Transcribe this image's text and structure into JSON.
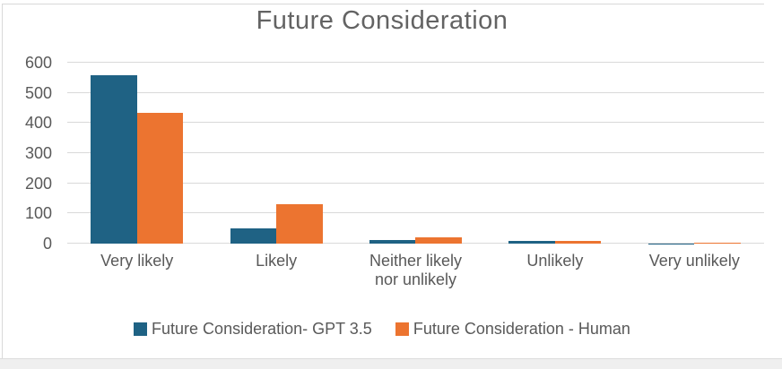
{
  "chart_data": {
    "type": "bar",
    "title": "Future Consideration",
    "categories": [
      "Very likely",
      "Likely",
      "Neither likely nor unlikely",
      "Unlikely",
      "Very unlikely"
    ],
    "series": [
      {
        "name": "Future Consideration- GPT 3.5",
        "color": "#1F6284",
        "values": [
          557,
          50,
          11,
          8,
          1
        ]
      },
      {
        "name": "Future Consideration - Human",
        "color": "#EC7430",
        "values": [
          433,
          130,
          21,
          9,
          4
        ]
      }
    ],
    "ylim": [
      0,
      600
    ],
    "yticks": [
      0,
      100,
      200,
      300,
      400,
      500,
      600
    ],
    "grid": true,
    "legend_position": "bottom",
    "colors": {
      "gridline": "#D9D9D9",
      "axis_text": "#595959",
      "title_text": "#636363"
    }
  }
}
